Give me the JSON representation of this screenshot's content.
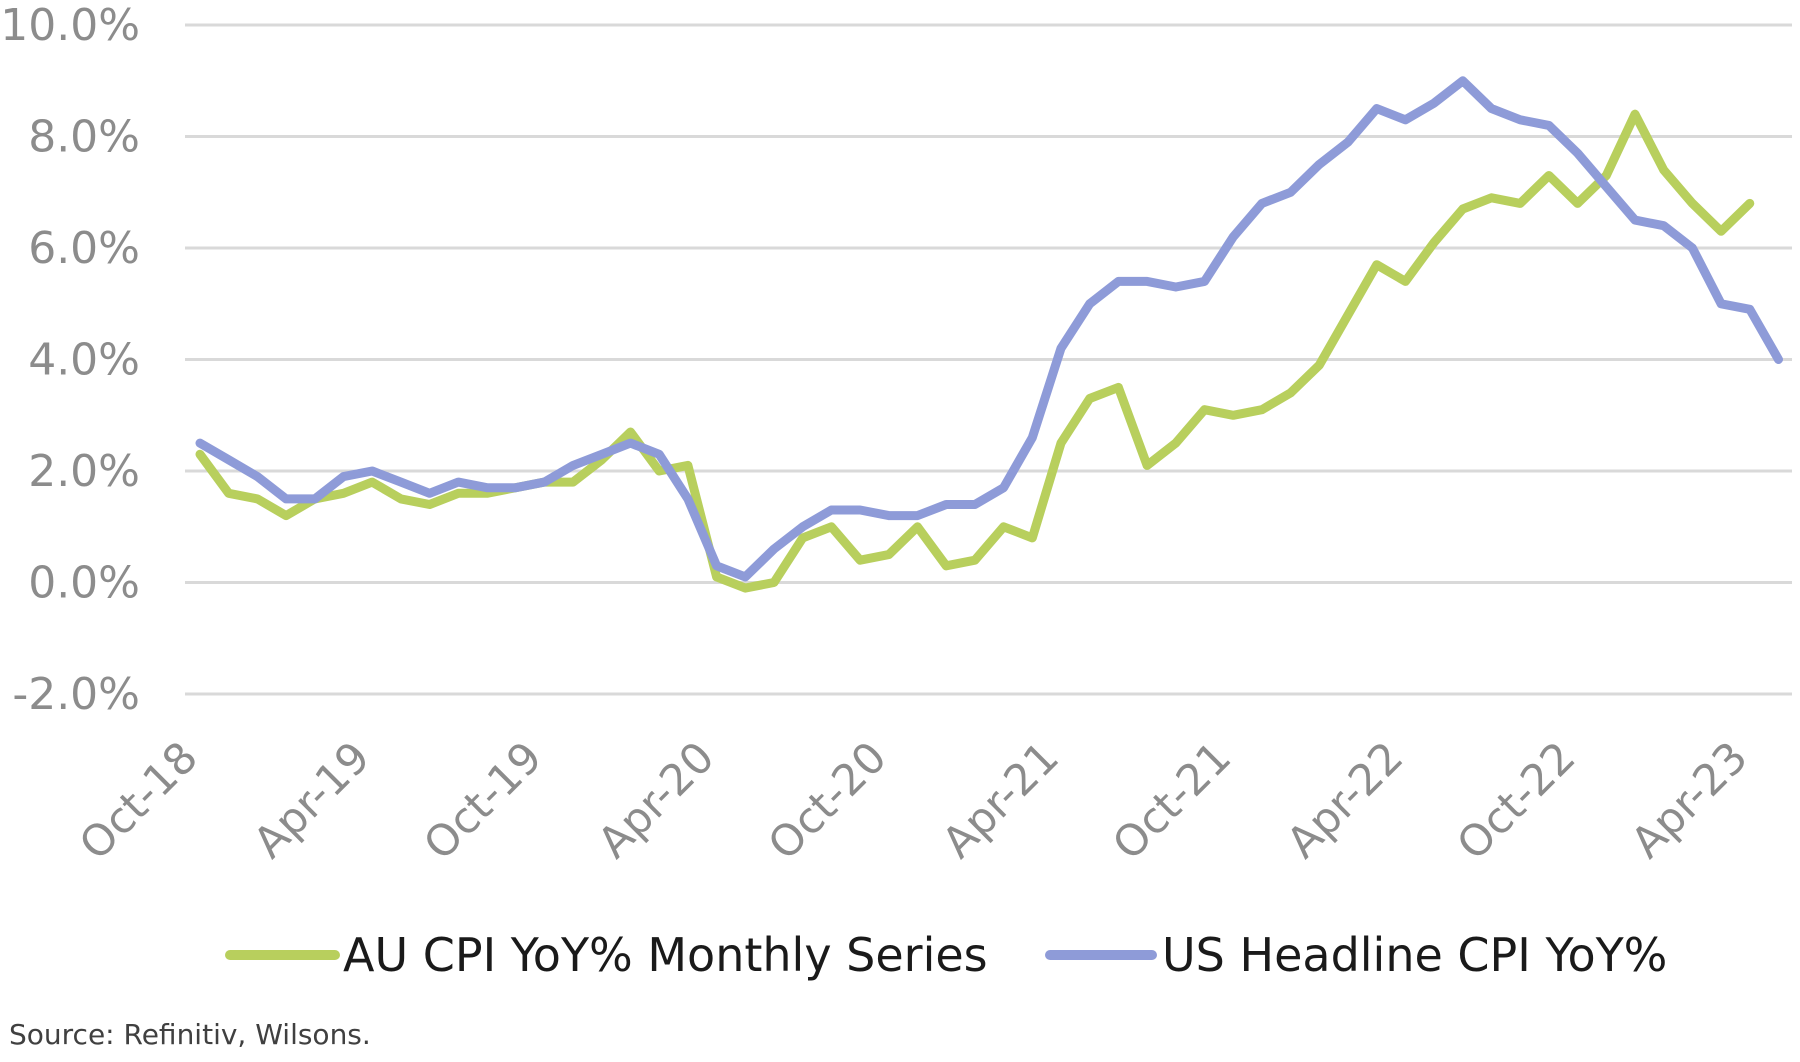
{
  "chart_data": {
    "type": "line",
    "x": [
      "Oct-18",
      "Nov-18",
      "Dec-18",
      "Jan-19",
      "Feb-19",
      "Mar-19",
      "Apr-19",
      "May-19",
      "Jun-19",
      "Jul-19",
      "Aug-19",
      "Sep-19",
      "Oct-19",
      "Nov-19",
      "Dec-19",
      "Jan-20",
      "Feb-20",
      "Mar-20",
      "Apr-20",
      "May-20",
      "Jun-20",
      "Jul-20",
      "Aug-20",
      "Sep-20",
      "Oct-20",
      "Nov-20",
      "Dec-20",
      "Jan-21",
      "Feb-21",
      "Mar-21",
      "Apr-21",
      "May-21",
      "Jun-21",
      "Jul-21",
      "Aug-21",
      "Sep-21",
      "Oct-21",
      "Nov-21",
      "Dec-21",
      "Jan-22",
      "Feb-22",
      "Mar-22",
      "Apr-22",
      "May-22",
      "Jun-22",
      "Jul-22",
      "Aug-22",
      "Sep-22",
      "Oct-22",
      "Nov-22",
      "Dec-22",
      "Jan-23",
      "Feb-23",
      "Mar-23",
      "Apr-23",
      "May-23"
    ],
    "xtick_labels": [
      "Oct-18",
      "Apr-19",
      "Oct-19",
      "Apr-20",
      "Oct-20",
      "Apr-21",
      "Oct-21",
      "Apr-22",
      "Oct-22",
      "Apr-23"
    ],
    "ytick_labels": [
      "-2.0%",
      "0.0%",
      "2.0%",
      "4.0%",
      "6.0%",
      "8.0%",
      "10.0%"
    ],
    "ylim": [
      -2,
      10
    ],
    "grid": true,
    "legend_position": "bottom",
    "series": [
      {
        "name": "AU CPI YoY% Monthly Series",
        "color": "#b8cf5d",
        "values": [
          2.3,
          1.6,
          1.5,
          1.2,
          1.5,
          1.6,
          1.8,
          1.5,
          1.4,
          1.6,
          1.6,
          1.7,
          1.8,
          1.8,
          2.2,
          2.7,
          2.0,
          2.1,
          0.1,
          -0.1,
          0.0,
          0.8,
          1.0,
          0.4,
          0.5,
          1.0,
          0.3,
          0.4,
          1.0,
          0.8,
          2.5,
          3.3,
          3.5,
          2.1,
          2.5,
          3.1,
          3.0,
          3.1,
          3.4,
          3.9,
          4.8,
          5.7,
          5.4,
          6.1,
          6.7,
          6.9,
          6.8,
          7.3,
          6.8,
          7.3,
          8.4,
          7.4,
          6.8,
          6.3,
          6.8,
          null
        ]
      },
      {
        "name": "US Headline CPI YoY%",
        "color": "#8e9bd8",
        "values": [
          2.5,
          2.2,
          1.9,
          1.5,
          1.5,
          1.9,
          2.0,
          1.8,
          1.6,
          1.8,
          1.7,
          1.7,
          1.8,
          2.1,
          2.3,
          2.5,
          2.3,
          1.5,
          0.3,
          0.1,
          0.6,
          1.0,
          1.3,
          1.3,
          1.2,
          1.2,
          1.4,
          1.4,
          1.7,
          2.6,
          4.2,
          5.0,
          5.4,
          5.4,
          5.3,
          5.4,
          6.2,
          6.8,
          7.0,
          7.5,
          7.9,
          8.5,
          8.3,
          8.6,
          9.0,
          8.5,
          8.3,
          8.2,
          7.7,
          7.1,
          6.5,
          6.4,
          6.0,
          5.0,
          4.9,
          4.0
        ]
      }
    ]
  },
  "source": "Source: Refinitiv, Wilsons."
}
